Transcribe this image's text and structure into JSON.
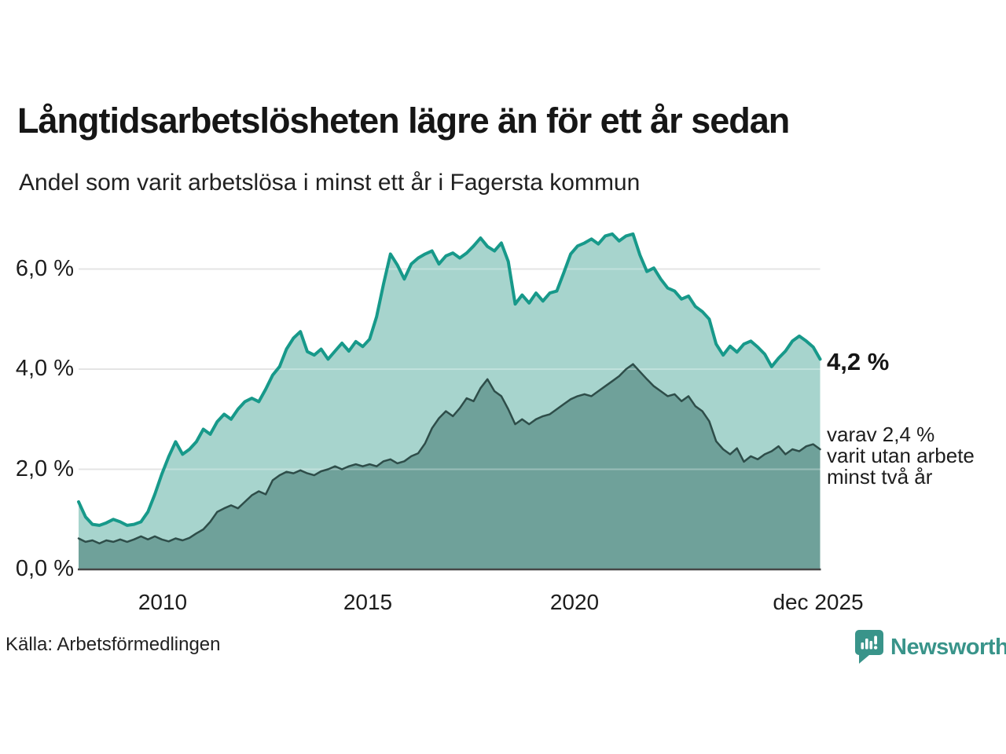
{
  "chart_data": {
    "type": "area",
    "title": "Långtidsarbetslösheten lägre än för ett år sedan",
    "subtitle": "Andel som varit arbetslösa i minst ett år i Fagersta kommun",
    "x_start_year": 2008.0,
    "x_step_years": 0.1667,
    "ylim": [
      0,
      7.05
    ],
    "grid": "on",
    "grid_color": "#d9d9d9",
    "baseline_color": "#474747",
    "yticks": [
      {
        "value": 6,
        "label": "6,0 %"
      },
      {
        "value": 4,
        "label": "4,0 %"
      },
      {
        "value": 2,
        "label": "2,0 %"
      },
      {
        "value": 0,
        "label": "0,0 %"
      }
    ],
    "xticks": [
      {
        "year": 2010,
        "label": "2010"
      },
      {
        "year": 2015,
        "label": "2015"
      },
      {
        "year": 2020,
        "label": "2020"
      },
      {
        "year": 2025.92,
        "label": "dec 2025"
      }
    ],
    "series": [
      {
        "name": "Andel som varit arbetslösa i minst ett år",
        "line_color": "#17998a",
        "fill_color": "#a7d4cd",
        "line_width": 4,
        "end_value_pct": 4.2,
        "values": [
          1.35,
          1.05,
          0.9,
          0.88,
          0.93,
          1.0,
          0.95,
          0.88,
          0.9,
          0.95,
          1.15,
          1.5,
          1.9,
          2.25,
          2.55,
          2.3,
          2.4,
          2.55,
          2.8,
          2.7,
          2.95,
          3.1,
          3.0,
          3.2,
          3.35,
          3.42,
          3.35,
          3.6,
          3.88,
          4.05,
          4.4,
          4.62,
          4.75,
          4.35,
          4.28,
          4.4,
          4.2,
          4.36,
          4.52,
          4.36,
          4.55,
          4.45,
          4.6,
          5.05,
          5.7,
          6.3,
          6.08,
          5.8,
          6.1,
          6.22,
          6.3,
          6.36,
          6.1,
          6.26,
          6.32,
          6.22,
          6.32,
          6.46,
          6.62,
          6.45,
          6.36,
          6.52,
          6.15,
          5.3,
          5.48,
          5.32,
          5.52,
          5.36,
          5.52,
          5.56,
          5.92,
          6.3,
          6.46,
          6.52,
          6.6,
          6.5,
          6.66,
          6.7,
          6.56,
          6.66,
          6.7,
          6.28,
          5.95,
          6.02,
          5.8,
          5.62,
          5.56,
          5.4,
          5.46,
          5.25,
          5.15,
          5.0,
          4.5,
          4.28,
          4.46,
          4.34,
          4.5,
          4.56,
          4.44,
          4.3,
          4.05,
          4.22,
          4.36,
          4.56,
          4.66,
          4.56,
          4.44,
          4.2
        ]
      },
      {
        "name": "varav utan arbete minst två år",
        "line_color": "#2e4d49",
        "fill_color": "#6fa19a",
        "line_width": 2.5,
        "end_value_pct": 2.4,
        "values": [
          0.62,
          0.55,
          0.58,
          0.52,
          0.58,
          0.55,
          0.6,
          0.55,
          0.6,
          0.66,
          0.6,
          0.66,
          0.6,
          0.56,
          0.62,
          0.58,
          0.63,
          0.72,
          0.8,
          0.95,
          1.15,
          1.22,
          1.28,
          1.22,
          1.35,
          1.48,
          1.56,
          1.5,
          1.78,
          1.88,
          1.95,
          1.92,
          1.98,
          1.92,
          1.88,
          1.96,
          2.0,
          2.06,
          2.0,
          2.06,
          2.1,
          2.06,
          2.1,
          2.06,
          2.16,
          2.2,
          2.12,
          2.16,
          2.26,
          2.32,
          2.52,
          2.82,
          3.02,
          3.16,
          3.06,
          3.22,
          3.42,
          3.36,
          3.62,
          3.8,
          3.56,
          3.46,
          3.2,
          2.9,
          3.0,
          2.9,
          3.0,
          3.06,
          3.1,
          3.2,
          3.3,
          3.4,
          3.46,
          3.5,
          3.46,
          3.56,
          3.66,
          3.76,
          3.86,
          4.0,
          4.1,
          3.95,
          3.8,
          3.66,
          3.56,
          3.46,
          3.5,
          3.36,
          3.46,
          3.26,
          3.16,
          2.96,
          2.56,
          2.4,
          2.3,
          2.42,
          2.15,
          2.26,
          2.2,
          2.3,
          2.36,
          2.46,
          2.3,
          2.4,
          2.36,
          2.46,
          2.5,
          2.4
        ]
      }
    ],
    "annotations": {
      "end_value": "4,2 %",
      "secondary": [
        "varav 2,4 %",
        "varit utan arbete",
        "minst två år"
      ]
    }
  },
  "footer": {
    "source": "Källa: Arbetsförmedlingen",
    "brand_name": "Newsworthy",
    "brand_color": "#39948a"
  }
}
